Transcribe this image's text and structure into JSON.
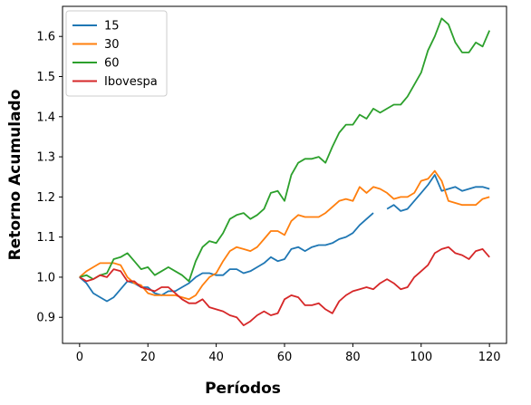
{
  "chart_data": {
    "type": "line",
    "xlabel": "Períodos",
    "ylabel": "Retorno Acumulado",
    "xlim": [
      -5,
      125
    ],
    "ylim": [
      0.835,
      1.675
    ],
    "xticks": [
      0,
      20,
      40,
      60,
      80,
      100,
      120
    ],
    "yticks": [
      0.9,
      1.0,
      1.1,
      1.2,
      1.3,
      1.4,
      1.5,
      1.6
    ],
    "legend_position": "upper-left",
    "grid": false,
    "series": [
      {
        "name": "15",
        "color": "#1f77b4",
        "points": [
          [
            0,
            1.0
          ],
          [
            2,
            0.985
          ],
          [
            4,
            0.96
          ],
          [
            6,
            0.95
          ],
          [
            8,
            0.94
          ],
          [
            10,
            0.95
          ],
          [
            12,
            0.97
          ],
          [
            14,
            0.99
          ],
          [
            16,
            0.985
          ],
          [
            18,
            0.975
          ],
          [
            20,
            0.975
          ],
          [
            22,
            0.96
          ],
          [
            24,
            0.955
          ],
          [
            26,
            0.965
          ],
          [
            28,
            0.965
          ],
          [
            30,
            0.975
          ],
          [
            32,
            0.985
          ],
          [
            34,
            1.0
          ],
          [
            36,
            1.01
          ],
          [
            38,
            1.01
          ],
          [
            40,
            1.005
          ],
          [
            42,
            1.005
          ],
          [
            44,
            1.02
          ],
          [
            46,
            1.02
          ],
          [
            48,
            1.01
          ],
          [
            50,
            1.015
          ],
          [
            52,
            1.025
          ],
          [
            54,
            1.035
          ],
          [
            56,
            1.05
          ],
          [
            58,
            1.04
          ],
          [
            60,
            1.045
          ],
          [
            62,
            1.07
          ],
          [
            64,
            1.075
          ],
          [
            66,
            1.065
          ],
          [
            68,
            1.075
          ],
          [
            70,
            1.08
          ],
          [
            72,
            1.08
          ],
          [
            74,
            1.085
          ],
          [
            76,
            1.095
          ],
          [
            78,
            1.1
          ],
          [
            80,
            1.11
          ],
          [
            82,
            1.13
          ],
          [
            84,
            1.145
          ],
          [
            86,
            1.16
          ],
          [
            90,
            1.17
          ],
          [
            92,
            1.18
          ],
          [
            94,
            1.165
          ],
          [
            96,
            1.17
          ],
          [
            98,
            1.19
          ],
          [
            100,
            1.21
          ],
          [
            102,
            1.23
          ],
          [
            104,
            1.255
          ],
          [
            106,
            1.215
          ],
          [
            108,
            1.22
          ],
          [
            110,
            1.225
          ],
          [
            112,
            1.215
          ],
          [
            114,
            1.22
          ],
          [
            116,
            1.225
          ],
          [
            118,
            1.225
          ],
          [
            120,
            1.22
          ]
        ]
      },
      {
        "name": "30",
        "color": "#ff7f0e",
        "points": [
          [
            0,
            1.0
          ],
          [
            2,
            1.015
          ],
          [
            4,
            1.025
          ],
          [
            6,
            1.035
          ],
          [
            8,
            1.035
          ],
          [
            10,
            1.035
          ],
          [
            12,
            1.03
          ],
          [
            14,
            1.0
          ],
          [
            16,
            0.985
          ],
          [
            18,
            0.98
          ],
          [
            20,
            0.96
          ],
          [
            22,
            0.955
          ],
          [
            24,
            0.955
          ],
          [
            26,
            0.955
          ],
          [
            28,
            0.955
          ],
          [
            30,
            0.95
          ],
          [
            32,
            0.945
          ],
          [
            34,
            0.955
          ],
          [
            36,
            0.98
          ],
          [
            38,
            1.0
          ],
          [
            40,
            1.01
          ],
          [
            42,
            1.04
          ],
          [
            44,
            1.065
          ],
          [
            46,
            1.075
          ],
          [
            48,
            1.07
          ],
          [
            50,
            1.065
          ],
          [
            52,
            1.075
          ],
          [
            54,
            1.095
          ],
          [
            56,
            1.115
          ],
          [
            58,
            1.115
          ],
          [
            60,
            1.105
          ],
          [
            62,
            1.14
          ],
          [
            64,
            1.155
          ],
          [
            66,
            1.15
          ],
          [
            68,
            1.15
          ],
          [
            70,
            1.15
          ],
          [
            72,
            1.16
          ],
          [
            74,
            1.175
          ],
          [
            76,
            1.19
          ],
          [
            78,
            1.195
          ],
          [
            80,
            1.19
          ],
          [
            82,
            1.225
          ],
          [
            84,
            1.21
          ],
          [
            86,
            1.225
          ],
          [
            88,
            1.22
          ],
          [
            90,
            1.21
          ],
          [
            92,
            1.195
          ],
          [
            94,
            1.2
          ],
          [
            96,
            1.2
          ],
          [
            98,
            1.21
          ],
          [
            100,
            1.24
          ],
          [
            102,
            1.245
          ],
          [
            104,
            1.265
          ],
          [
            106,
            1.24
          ],
          [
            108,
            1.19
          ],
          [
            110,
            1.185
          ],
          [
            112,
            1.18
          ],
          [
            114,
            1.18
          ],
          [
            116,
            1.18
          ],
          [
            118,
            1.195
          ],
          [
            120,
            1.2
          ]
        ]
      },
      {
        "name": "60",
        "color": "#2ca02c",
        "points": [
          [
            0,
            1.0
          ],
          [
            2,
            1.005
          ],
          [
            4,
            0.995
          ],
          [
            6,
            1.005
          ],
          [
            8,
            1.01
          ],
          [
            10,
            1.045
          ],
          [
            12,
            1.05
          ],
          [
            14,
            1.06
          ],
          [
            16,
            1.04
          ],
          [
            18,
            1.02
          ],
          [
            20,
            1.025
          ],
          [
            22,
            1.005
          ],
          [
            24,
            1.015
          ],
          [
            26,
            1.025
          ],
          [
            28,
            1.015
          ],
          [
            30,
            1.005
          ],
          [
            32,
            0.99
          ],
          [
            34,
            1.04
          ],
          [
            36,
            1.075
          ],
          [
            38,
            1.09
          ],
          [
            40,
            1.085
          ],
          [
            42,
            1.11
          ],
          [
            44,
            1.145
          ],
          [
            46,
            1.155
          ],
          [
            48,
            1.16
          ],
          [
            50,
            1.145
          ],
          [
            52,
            1.155
          ],
          [
            54,
            1.17
          ],
          [
            56,
            1.21
          ],
          [
            58,
            1.215
          ],
          [
            60,
            1.19
          ],
          [
            62,
            1.255
          ],
          [
            64,
            1.285
          ],
          [
            66,
            1.295
          ],
          [
            68,
            1.295
          ],
          [
            70,
            1.3
          ],
          [
            72,
            1.285
          ],
          [
            74,
            1.325
          ],
          [
            76,
            1.36
          ],
          [
            78,
            1.38
          ],
          [
            80,
            1.38
          ],
          [
            82,
            1.405
          ],
          [
            84,
            1.395
          ],
          [
            86,
            1.42
          ],
          [
            88,
            1.41
          ],
          [
            90,
            1.42
          ],
          [
            92,
            1.43
          ],
          [
            94,
            1.43
          ],
          [
            96,
            1.45
          ],
          [
            98,
            1.48
          ],
          [
            100,
            1.51
          ],
          [
            102,
            1.565
          ],
          [
            104,
            1.6
          ],
          [
            106,
            1.645
          ],
          [
            108,
            1.63
          ],
          [
            110,
            1.585
          ],
          [
            112,
            1.56
          ],
          [
            114,
            1.56
          ],
          [
            116,
            1.585
          ],
          [
            118,
            1.575
          ],
          [
            120,
            1.615
          ]
        ]
      },
      {
        "name": "Ibovespa",
        "color": "#d62728",
        "points": [
          [
            0,
            1.0
          ],
          [
            2,
            0.99
          ],
          [
            4,
            0.995
          ],
          [
            6,
            1.005
          ],
          [
            8,
            1.0
          ],
          [
            10,
            1.02
          ],
          [
            12,
            1.015
          ],
          [
            14,
            0.99
          ],
          [
            16,
            0.99
          ],
          [
            18,
            0.975
          ],
          [
            20,
            0.97
          ],
          [
            22,
            0.965
          ],
          [
            24,
            0.975
          ],
          [
            26,
            0.975
          ],
          [
            28,
            0.96
          ],
          [
            30,
            0.945
          ],
          [
            32,
            0.935
          ],
          [
            34,
            0.935
          ],
          [
            36,
            0.945
          ],
          [
            38,
            0.925
          ],
          [
            40,
            0.92
          ],
          [
            42,
            0.915
          ],
          [
            44,
            0.905
          ],
          [
            46,
            0.9
          ],
          [
            48,
            0.88
          ],
          [
            50,
            0.89
          ],
          [
            52,
            0.905
          ],
          [
            54,
            0.915
          ],
          [
            56,
            0.905
          ],
          [
            58,
            0.91
          ],
          [
            60,
            0.945
          ],
          [
            62,
            0.955
          ],
          [
            64,
            0.95
          ],
          [
            66,
            0.93
          ],
          [
            68,
            0.93
          ],
          [
            70,
            0.935
          ],
          [
            72,
            0.92
          ],
          [
            74,
            0.91
          ],
          [
            76,
            0.94
          ],
          [
            78,
            0.955
          ],
          [
            80,
            0.965
          ],
          [
            82,
            0.97
          ],
          [
            84,
            0.975
          ],
          [
            86,
            0.97
          ],
          [
            88,
            0.985
          ],
          [
            90,
            0.995
          ],
          [
            92,
            0.985
          ],
          [
            94,
            0.97
          ],
          [
            96,
            0.975
          ],
          [
            98,
            1.0
          ],
          [
            100,
            1.015
          ],
          [
            102,
            1.03
          ],
          [
            104,
            1.06
          ],
          [
            106,
            1.07
          ],
          [
            108,
            1.075
          ],
          [
            110,
            1.06
          ],
          [
            112,
            1.055
          ],
          [
            114,
            1.045
          ],
          [
            116,
            1.065
          ],
          [
            118,
            1.07
          ],
          [
            120,
            1.05
          ]
        ]
      }
    ]
  }
}
